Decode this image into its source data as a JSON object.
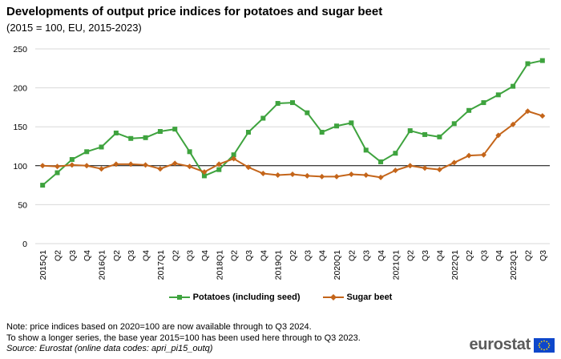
{
  "header": {
    "title": "Developments of output price indices for potatoes and sugar beet",
    "subtitle": "(2015 = 100, EU, 2015-2023)"
  },
  "colors": {
    "potatoes": "#3ea33e",
    "sugar_beet": "#c4651a",
    "grid": "#d9d9d9",
    "axis": "#000000"
  },
  "chart_data": {
    "type": "line",
    "title": "Developments of output price indices for potatoes and sugar beet",
    "subtitle": "(2015 = 100, EU, 2015-2023)",
    "xlabel": "",
    "ylabel": "",
    "ylim": [
      0,
      250
    ],
    "yticks": [
      0,
      50,
      100,
      150,
      200,
      250
    ],
    "reference_line": 100,
    "categories": [
      "2015Q1",
      "Q2",
      "Q3",
      "Q4",
      "2016Q1",
      "Q2",
      "Q3",
      "Q4",
      "2017Q1",
      "Q2",
      "Q3",
      "Q4",
      "2018Q1",
      "Q2",
      "Q3",
      "Q4",
      "2019Q1",
      "Q2",
      "Q3",
      "Q4",
      "2020Q1",
      "Q2",
      "Q3",
      "Q4",
      "2021Q1",
      "Q2",
      "Q3",
      "Q4",
      "2022Q1",
      "Q2",
      "Q3",
      "Q4",
      "2023Q1",
      "Q2",
      "Q3"
    ],
    "series": [
      {
        "name": "Potatoes (including seed)",
        "values": [
          75,
          91,
          108,
          118,
          124,
          142,
          135,
          136,
          144,
          147,
          118,
          87,
          95,
          114,
          143,
          161,
          180,
          181,
          168,
          143,
          151,
          155,
          120,
          105,
          116,
          145,
          140,
          137,
          154,
          171,
          181,
          191,
          202,
          231,
          235
        ]
      },
      {
        "name": "Sugar beet",
        "values": [
          100,
          99,
          101,
          100,
          96,
          102,
          102,
          101,
          96,
          103,
          99,
          92,
          102,
          109,
          98,
          90,
          88,
          89,
          87,
          86,
          86,
          89,
          88,
          85,
          94,
          100,
          97,
          95,
          104,
          113,
          114,
          139,
          153,
          170,
          164
        ]
      }
    ],
    "legend_position": "bottom-center"
  },
  "notes": {
    "line1": "Note: price indices based on 2020=100 are now available through to Q3 2024.",
    "line2": "To show a longer series, the base year 2015=100 has been used here through to Q3 2023.",
    "source": "Source: Eurostat (online data codes: apri_pi15_outq)"
  },
  "logo": {
    "text": "eurostat"
  }
}
